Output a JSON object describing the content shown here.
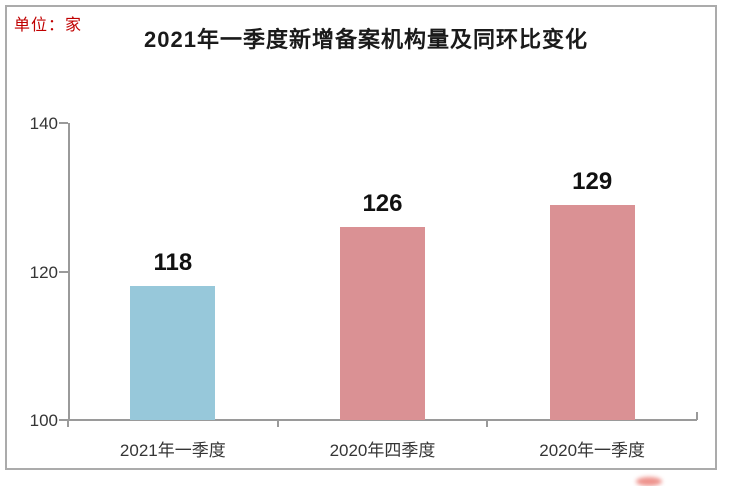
{
  "meta": {
    "unit_label": "单位：家"
  },
  "chart_data": {
    "type": "bar",
    "title": "2021年一季度新增备案机构量及同环比变化",
    "categories": [
      "2021年一季度",
      "2020年四季度",
      "2020年一季度"
    ],
    "values": [
      118,
      126,
      129
    ],
    "value_labels": [
      "118",
      "126",
      "129"
    ],
    "bar_colors": [
      "#97c8da",
      "#da9194",
      "#da9194"
    ],
    "yticks": [
      140,
      120,
      100
    ],
    "ylim": [
      100,
      140
    ],
    "xlabel": "",
    "ylabel": "",
    "grid": false,
    "legend": "none",
    "plot_border": "axes-only"
  },
  "colors": {
    "unit_label_text": "#c00000",
    "title_text": "#1a1a1a",
    "axis_line": "#9a9a9a",
    "tick_text": "#353535",
    "value_label_text": "#111111",
    "frame_border": "#ababab",
    "watermark_red": "#e03a2f"
  }
}
